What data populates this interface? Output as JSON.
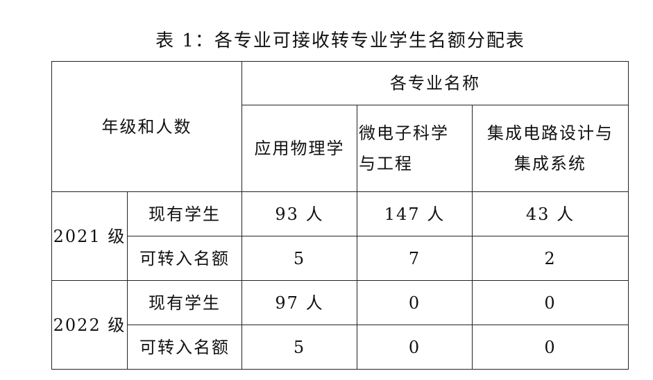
{
  "title": "表 1：各专业可接收转专业学生名额分配表",
  "header": {
    "grade_and_count": "年级和人数",
    "majors_group": "各专业名称",
    "majors": [
      {
        "line1": "应用物理学",
        "line2": ""
      },
      {
        "line1": "微电子科学",
        "line2": "与工程"
      },
      {
        "line1": "集成电路设计与",
        "line2": "集成系统"
      }
    ]
  },
  "rows": [
    {
      "grade": "2021 级",
      "items": [
        {
          "label": "现有学生",
          "values": [
            "93 人",
            "147 人",
            "43 人"
          ]
        },
        {
          "label": "可转入名额",
          "values": [
            "5",
            "7",
            "2"
          ]
        }
      ]
    },
    {
      "grade": "2022 级",
      "items": [
        {
          "label": "现有学生",
          "values": [
            "97 人",
            "0",
            "0"
          ]
        },
        {
          "label": "可转入名额",
          "values": [
            "5",
            "0",
            "0"
          ]
        }
      ]
    }
  ]
}
